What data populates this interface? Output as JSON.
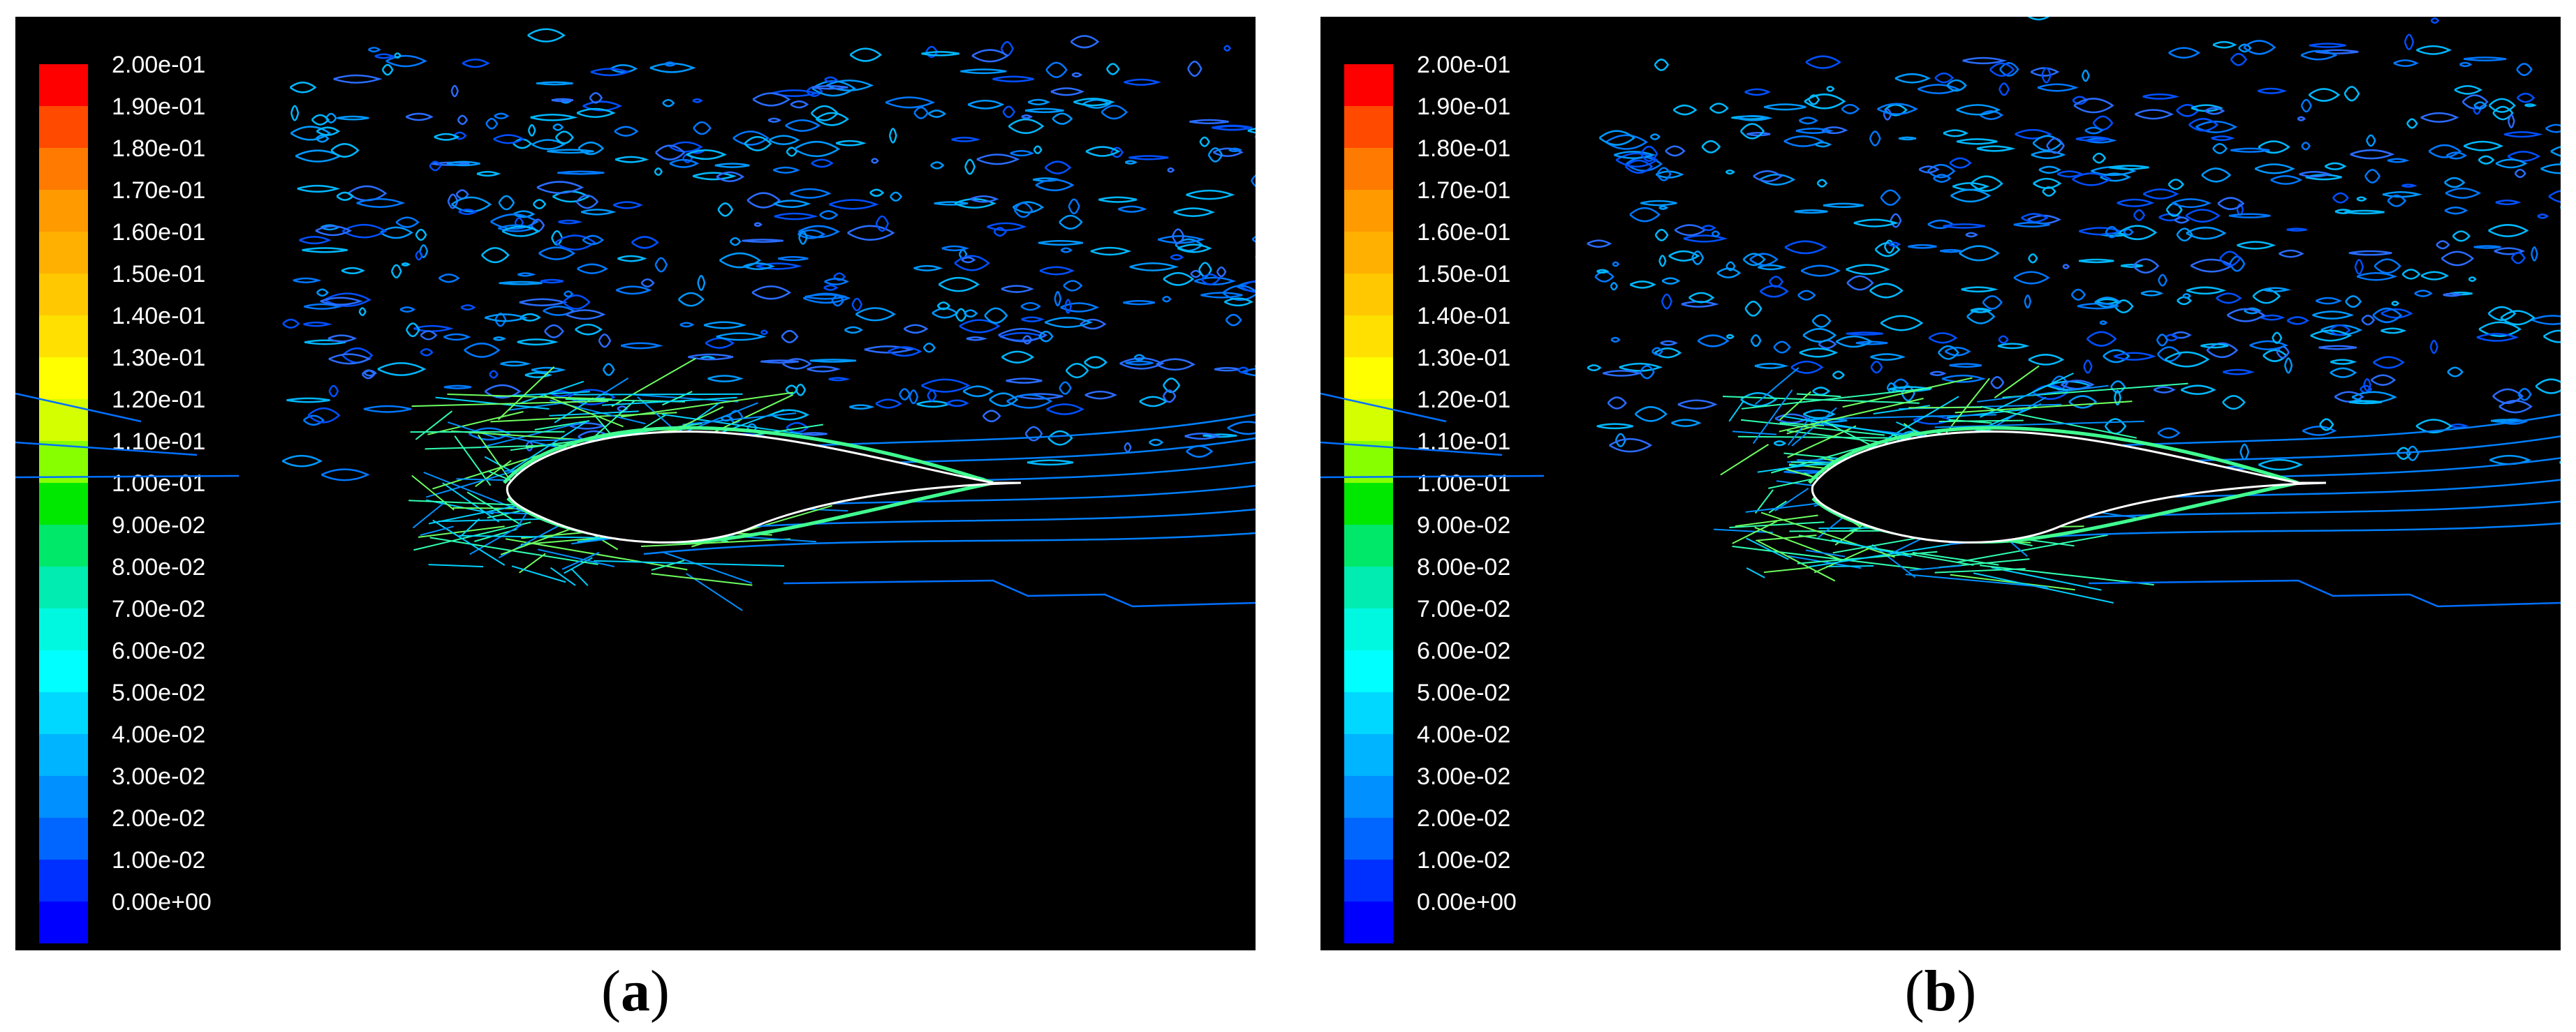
{
  "colorbar": {
    "labels": [
      "2.00e-01",
      "1.90e-01",
      "1.80e-01",
      "1.70e-01",
      "1.60e-01",
      "1.50e-01",
      "1.40e-01",
      "1.30e-01",
      "1.20e-01",
      "1.10e-01",
      "1.00e-01",
      "9.00e-02",
      "8.00e-02",
      "7.00e-02",
      "6.00e-02",
      "5.00e-02",
      "4.00e-02",
      "3.00e-02",
      "2.00e-02",
      "1.00e-02",
      "0.00e+00"
    ],
    "colors": [
      "#ff0000",
      "#ff4a00",
      "#ff7a00",
      "#ff9a00",
      "#ffb000",
      "#ffc800",
      "#ffe000",
      "#ffff00",
      "#d4ff00",
      "#88ff00",
      "#00e800",
      "#00e86a",
      "#00ecb0",
      "#00f8e0",
      "#00ffff",
      "#00d8ff",
      "#00b4ff",
      "#0090ff",
      "#0066ff",
      "#0030ff",
      "#0000ff"
    ]
  },
  "panels": [
    {
      "id": "a",
      "caption_label": "a",
      "wake_spread": 1.0
    },
    {
      "id": "b",
      "caption_label": "b",
      "wake_spread": 0.9
    }
  ]
}
